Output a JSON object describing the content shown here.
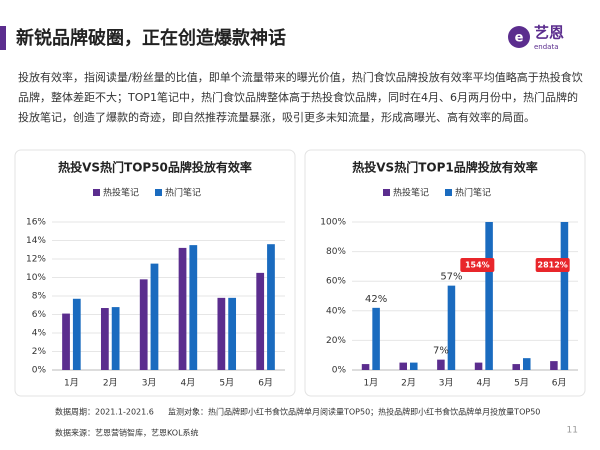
{
  "header": {
    "title": "新锐品牌破圈，正在创造爆款神话",
    "logo": {
      "cn": "艺恩",
      "en": "endata"
    }
  },
  "paragraph": "投放有效率，指阅读量/粉丝量的比值，即单个流量带来的曝光价值，热门食饮品牌投放有效率平均值略高于热投食饮品牌，整体差距不大；TOP1笔记中，热门食饮品牌整体高于热投食饮品牌，同时在4月、6月两月份中，热门品牌的投放笔记，创造了爆款的奇迹，即自然推荐流量暴涨，吸引更多未知流量，形成高曝光、高有效率的局面。",
  "chart_data": [
    {
      "type": "bar",
      "title": "热投VS热门TOP50品牌投放有效率",
      "categories": [
        "1月",
        "2月",
        "3月",
        "4月",
        "5月",
        "6月"
      ],
      "series": [
        {
          "name": "热投笔记",
          "color": "#5b2d8e",
          "values": [
            6.1,
            6.7,
            9.8,
            13.2,
            7.8,
            10.5
          ]
        },
        {
          "name": "热门笔记",
          "color": "#1a6bbf",
          "values": [
            7.7,
            6.8,
            11.5,
            13.5,
            7.8,
            13.6
          ]
        }
      ],
      "ylim": [
        0,
        16
      ],
      "yticks": [
        {
          "value": 0,
          "label": "0%"
        },
        {
          "value": 2,
          "label": "2%"
        },
        {
          "value": 4,
          "label": "4%"
        },
        {
          "value": 6,
          "label": "6%"
        },
        {
          "value": 8,
          "label": "8%"
        },
        {
          "value": 10,
          "label": "10%"
        },
        {
          "value": 12,
          "label": "12%"
        },
        {
          "value": 14,
          "label": "14%"
        },
        {
          "value": 16,
          "label": "16%"
        }
      ],
      "grid": true,
      "legend": "top"
    },
    {
      "type": "bar",
      "title": "热投VS热门TOP1品牌投放有效率",
      "categories": [
        "1月",
        "2月",
        "3月",
        "4月",
        "5月",
        "6月"
      ],
      "series": [
        {
          "name": "热投笔记",
          "color": "#5b2d8e",
          "values": [
            4,
            5,
            7,
            5,
            4,
            6
          ],
          "value_labels": [
            null,
            null,
            "7%",
            null,
            null,
            null
          ]
        },
        {
          "name": "热门笔记",
          "color": "#1a6bbf",
          "values": [
            42,
            5,
            57,
            154,
            8,
            2812
          ],
          "value_labels": [
            "42%",
            null,
            "57%",
            "154%",
            null,
            "2812%"
          ]
        }
      ],
      "ylim": [
        0,
        100
      ],
      "yticks": [
        {
          "value": 0,
          "label": "0%"
        },
        {
          "value": 20,
          "label": "20%"
        },
        {
          "value": 40,
          "label": "40%"
        },
        {
          "value": 60,
          "label": "60%"
        },
        {
          "value": 80,
          "label": "80%"
        },
        {
          "value": 100,
          "label": "100%"
        }
      ],
      "grid": true,
      "legend": "top"
    }
  ],
  "footer": {
    "period": "数据周期：2021.1-2021.6",
    "objects": "监测对象：热门品牌即小红书食饮品牌单月阅读量TOP50；热投品牌即小红书食饮品牌单月投放量TOP50",
    "source": "数据来源：艺恩营销智库，艺恩KOL系统",
    "page": "11"
  }
}
